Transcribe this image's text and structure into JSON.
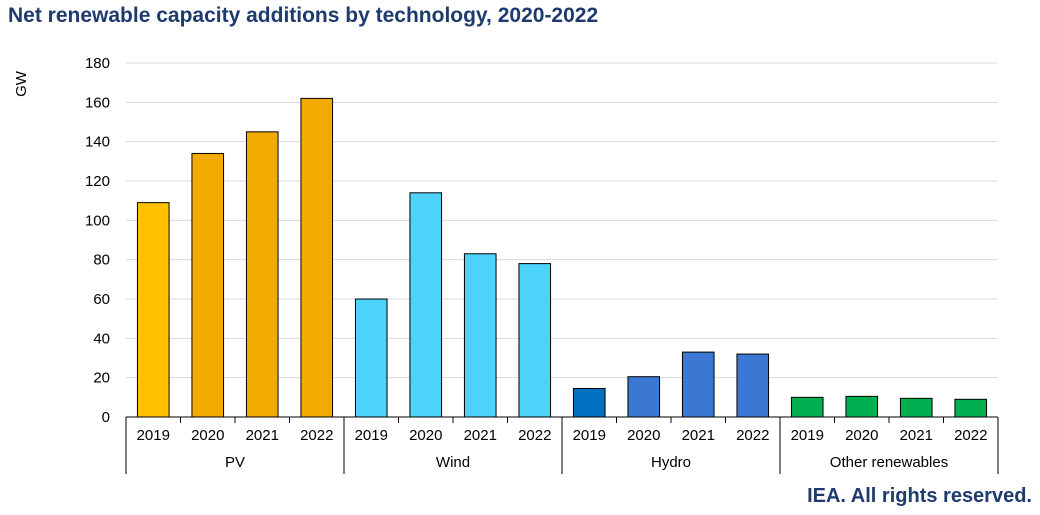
{
  "title": "Net renewable capacity additions by technology, 2020-2022",
  "credit": "IEA. All rights reserved.",
  "chart_data": {
    "type": "bar",
    "title": "Net renewable capacity additions by technology, 2020-2022",
    "ylabel": "GW",
    "xlabel": "",
    "ylim": [
      0,
      180
    ],
    "yticks": [
      0,
      20,
      40,
      60,
      80,
      100,
      120,
      140,
      160,
      180
    ],
    "grid": true,
    "legend": "none",
    "groups": [
      {
        "name": "PV",
        "categories": [
          "2019",
          "2020",
          "2021",
          "2022"
        ],
        "values": [
          109,
          134,
          145,
          162
        ],
        "colors": [
          "#ffc000",
          "#f2a900",
          "#f2a900",
          "#f2a900"
        ]
      },
      {
        "name": "Wind",
        "categories": [
          "2019",
          "2020",
          "2021",
          "2022"
        ],
        "values": [
          60,
          114,
          83,
          78
        ],
        "colors": [
          "#4dd2fa",
          "#4dd2fa",
          "#4dd2fa",
          "#4dd2fa"
        ]
      },
      {
        "name": "Hydro",
        "categories": [
          "2019",
          "2020",
          "2021",
          "2022"
        ],
        "values": [
          14.5,
          20.5,
          33,
          32
        ],
        "colors": [
          "#0070c0",
          "#3b78d4",
          "#3b78d4",
          "#3b78d4"
        ]
      },
      {
        "name": "Other renewables",
        "categories": [
          "2019",
          "2020",
          "2021",
          "2022"
        ],
        "values": [
          10,
          10.5,
          9.5,
          9
        ],
        "colors": [
          "#00b050",
          "#00b050",
          "#00b050",
          "#00b050"
        ]
      }
    ]
  }
}
